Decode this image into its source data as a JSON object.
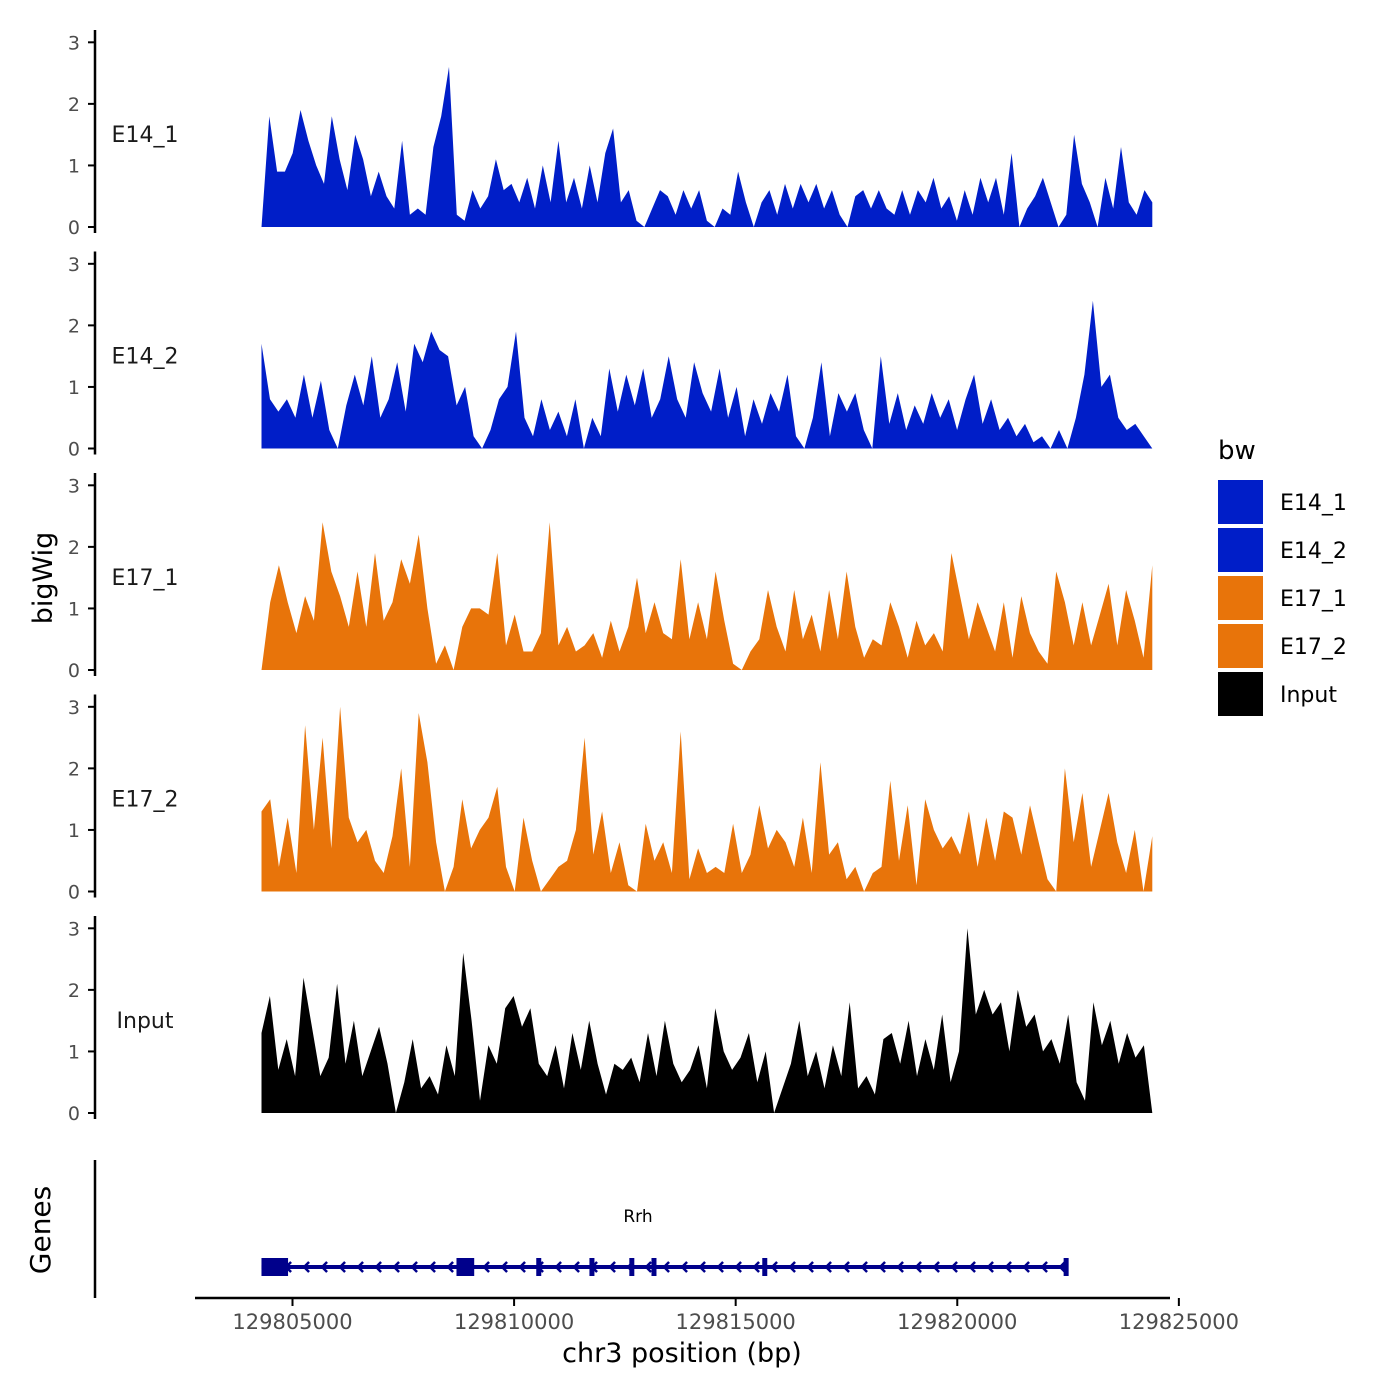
{
  "chart_data": {
    "type": "area",
    "ylabel": "bigWig",
    "xlabel": "chr3 position (bp)",
    "ylim": [
      0,
      3.2
    ],
    "y_ticks": [
      0,
      1,
      2,
      3
    ],
    "x_domain": [
      129802800,
      129824800
    ],
    "x_ticks": [
      {
        "value": 129805000,
        "label": "129805000"
      },
      {
        "value": 129810000,
        "label": "129810000"
      },
      {
        "value": 129815000,
        "label": "129815000"
      },
      {
        "value": 129820000,
        "label": "129820000"
      },
      {
        "value": 129825000,
        "label": "129825000"
      }
    ],
    "legend": {
      "title": "bw",
      "position": "right",
      "entries": [
        {
          "label": "E14_1",
          "color": "#001ec8"
        },
        {
          "label": "E14_2",
          "color": "#001ec8"
        },
        {
          "label": "E17_1",
          "color": "#e8740a"
        },
        {
          "label": "E17_2",
          "color": "#e8740a"
        },
        {
          "label": "Input",
          "color": "#000000"
        }
      ]
    },
    "series": [
      {
        "name": "E14_1",
        "color": "#001ec8",
        "x_start": 129804300,
        "x_end": 129824400,
        "values": [
          0,
          1.8,
          0.9,
          0.9,
          1.2,
          1.9,
          1.4,
          1.0,
          0.7,
          1.8,
          1.1,
          0.6,
          1.5,
          1.1,
          0.5,
          0.9,
          0.5,
          0.3,
          1.4,
          0.2,
          0.3,
          0.2,
          1.3,
          1.8,
          2.6,
          0.2,
          0.1,
          0.6,
          0.3,
          0.5,
          1.1,
          0.6,
          0.7,
          0.4,
          0.8,
          0.3,
          1.0,
          0.4,
          1.4,
          0.4,
          0.8,
          0.3,
          1.0,
          0.4,
          1.2,
          1.6,
          0.4,
          0.6,
          0.1,
          0.0,
          0.3,
          0.6,
          0.5,
          0.2,
          0.6,
          0.3,
          0.6,
          0.1,
          0.0,
          0.3,
          0.2,
          0.9,
          0.4,
          0.0,
          0.4,
          0.6,
          0.2,
          0.7,
          0.3,
          0.7,
          0.4,
          0.7,
          0.3,
          0.6,
          0.2,
          0.0,
          0.5,
          0.6,
          0.3,
          0.6,
          0.3,
          0.2,
          0.6,
          0.2,
          0.6,
          0.4,
          0.8,
          0.3,
          0.5,
          0.1,
          0.6,
          0.2,
          0.8,
          0.4,
          0.8,
          0.2,
          1.2,
          0.0,
          0.3,
          0.5,
          0.8,
          0.4,
          0.0,
          0.2,
          1.5,
          0.7,
          0.4,
          0.0,
          0.8,
          0.3,
          1.3,
          0.4,
          0.2,
          0.6,
          0.4
        ]
      },
      {
        "name": "E14_2",
        "color": "#001ec8",
        "x_start": 129804300,
        "x_end": 129824400,
        "values": [
          1.7,
          0.8,
          0.6,
          0.8,
          0.5,
          1.2,
          0.5,
          1.1,
          0.3,
          0.0,
          0.7,
          1.2,
          0.7,
          1.5,
          0.5,
          0.8,
          1.4,
          0.6,
          1.7,
          1.4,
          1.9,
          1.6,
          1.5,
          0.7,
          1.0,
          0.2,
          0.0,
          0.3,
          0.8,
          1.0,
          1.9,
          0.5,
          0.2,
          0.8,
          0.3,
          0.6,
          0.2,
          0.8,
          0.0,
          0.5,
          0.2,
          1.3,
          0.6,
          1.2,
          0.7,
          1.3,
          0.5,
          0.8,
          1.5,
          0.8,
          0.5,
          1.4,
          0.9,
          0.6,
          1.3,
          0.5,
          1.0,
          0.2,
          0.8,
          0.4,
          0.9,
          0.6,
          1.2,
          0.2,
          0.0,
          0.5,
          1.4,
          0.2,
          0.9,
          0.6,
          0.9,
          0.3,
          0.0,
          1.5,
          0.4,
          0.9,
          0.3,
          0.7,
          0.4,
          0.9,
          0.5,
          0.8,
          0.3,
          0.8,
          1.2,
          0.4,
          0.8,
          0.3,
          0.5,
          0.2,
          0.4,
          0.1,
          0.2,
          0.0,
          0.3,
          0.0,
          0.5,
          1.2,
          2.4,
          1.0,
          1.2,
          0.5,
          0.3,
          0.4,
          0.2,
          0.0
        ]
      },
      {
        "name": "E17_1",
        "color": "#e8740a",
        "x_start": 129804300,
        "x_end": 129824400,
        "values": [
          0,
          1.1,
          1.7,
          1.1,
          0.6,
          1.2,
          0.8,
          2.4,
          1.6,
          1.2,
          0.7,
          1.6,
          0.7,
          1.9,
          0.8,
          1.1,
          1.8,
          1.4,
          2.2,
          1.0,
          0.1,
          0.4,
          0.0,
          0.7,
          1.0,
          1.0,
          0.9,
          1.9,
          0.4,
          0.9,
          0.3,
          0.3,
          0.6,
          2.4,
          0.4,
          0.7,
          0.3,
          0.4,
          0.6,
          0.2,
          0.8,
          0.3,
          0.7,
          1.5,
          0.6,
          1.1,
          0.6,
          0.5,
          1.8,
          0.5,
          1.1,
          0.5,
          1.6,
          0.8,
          0.1,
          0.0,
          0.3,
          0.5,
          1.3,
          0.7,
          0.3,
          1.3,
          0.5,
          0.9,
          0.3,
          1.3,
          0.5,
          1.6,
          0.7,
          0.2,
          0.5,
          0.4,
          1.1,
          0.7,
          0.2,
          0.8,
          0.4,
          0.6,
          0.3,
          1.9,
          1.2,
          0.5,
          1.1,
          0.7,
          0.3,
          1.1,
          0.2,
          1.2,
          0.6,
          0.3,
          0.1,
          1.6,
          1.1,
          0.4,
          1.1,
          0.4,
          0.9,
          1.4,
          0.4,
          1.3,
          0.8,
          0.2,
          1.7
        ]
      },
      {
        "name": "E17_2",
        "color": "#e8740a",
        "x_start": 129804300,
        "x_end": 129824400,
        "values": [
          1.3,
          1.5,
          0.4,
          1.2,
          0.3,
          2.7,
          1.0,
          2.5,
          0.7,
          3.0,
          1.2,
          0.8,
          1.0,
          0.5,
          0.3,
          0.9,
          2.0,
          0.4,
          2.9,
          2.1,
          0.8,
          0.0,
          0.4,
          1.5,
          0.7,
          1.0,
          1.2,
          1.7,
          0.4,
          0.0,
          1.2,
          0.5,
          0.0,
          0.2,
          0.4,
          0.5,
          1.0,
          2.5,
          0.6,
          1.3,
          0.3,
          0.8,
          0.1,
          0.0,
          1.1,
          0.5,
          0.8,
          0.3,
          2.6,
          0.2,
          0.7,
          0.3,
          0.4,
          0.3,
          1.1,
          0.3,
          0.6,
          1.4,
          0.7,
          1.0,
          0.8,
          0.4,
          1.2,
          0.3,
          2.1,
          0.6,
          0.8,
          0.2,
          0.4,
          0.0,
          0.3,
          0.4,
          1.8,
          0.5,
          1.4,
          0.1,
          1.5,
          1.0,
          0.7,
          0.9,
          0.6,
          1.3,
          0.4,
          1.2,
          0.5,
          1.3,
          1.2,
          0.6,
          1.4,
          0.8,
          0.2,
          0.0,
          2.0,
          0.8,
          1.6,
          0.4,
          1.0,
          1.6,
          0.8,
          0.3,
          1.0,
          0.0,
          0.9
        ]
      },
      {
        "name": "Input",
        "color": "#000000",
        "x_start": 129804300,
        "x_end": 129824400,
        "values": [
          1.3,
          1.9,
          0.7,
          1.2,
          0.6,
          2.2,
          1.4,
          0.6,
          0.9,
          2.1,
          0.8,
          1.5,
          0.6,
          1.0,
          1.4,
          0.8,
          0.0,
          0.5,
          1.2,
          0.4,
          0.6,
          0.3,
          1.1,
          0.6,
          2.6,
          1.5,
          0.2,
          1.1,
          0.8,
          1.7,
          1.9,
          1.4,
          1.7,
          0.8,
          0.6,
          1.1,
          0.4,
          1.3,
          0.7,
          1.5,
          0.8,
          0.3,
          0.8,
          0.7,
          0.9,
          0.5,
          1.3,
          0.6,
          1.5,
          0.8,
          0.5,
          0.7,
          1.1,
          0.4,
          1.7,
          1.0,
          0.7,
          0.9,
          1.3,
          0.5,
          1.0,
          0.0,
          0.4,
          0.8,
          1.5,
          0.6,
          1.0,
          0.4,
          1.1,
          0.6,
          1.8,
          0.4,
          0.6,
          0.3,
          1.2,
          1.3,
          0.8,
          1.5,
          0.6,
          1.2,
          0.7,
          1.6,
          0.5,
          1.0,
          3.0,
          1.6,
          2.0,
          1.6,
          1.8,
          1.0,
          2.0,
          1.4,
          1.6,
          1.0,
          1.2,
          0.8,
          1.6,
          0.5,
          0.2,
          1.8,
          1.1,
          1.5,
          0.8,
          1.3,
          0.9,
          1.1,
          0.0
        ]
      }
    ],
    "gene_track": {
      "ylabel": "Genes",
      "gene_name": "Rrh",
      "color": "#00008b",
      "strand": "-",
      "start": 129804300,
      "end": 129822500,
      "exons": [
        {
          "start": 129804300,
          "end": 129804900
        },
        {
          "start": 129808700,
          "end": 129809100
        },
        {
          "start": 129810500,
          "end": 129810600
        },
        {
          "start": 129811700,
          "end": 129811800
        },
        {
          "start": 129812600,
          "end": 129812700
        },
        {
          "start": 129813100,
          "end": 129813200
        },
        {
          "start": 129815600,
          "end": 129815700
        },
        {
          "start": 129822400,
          "end": 129822450
        }
      ]
    }
  }
}
